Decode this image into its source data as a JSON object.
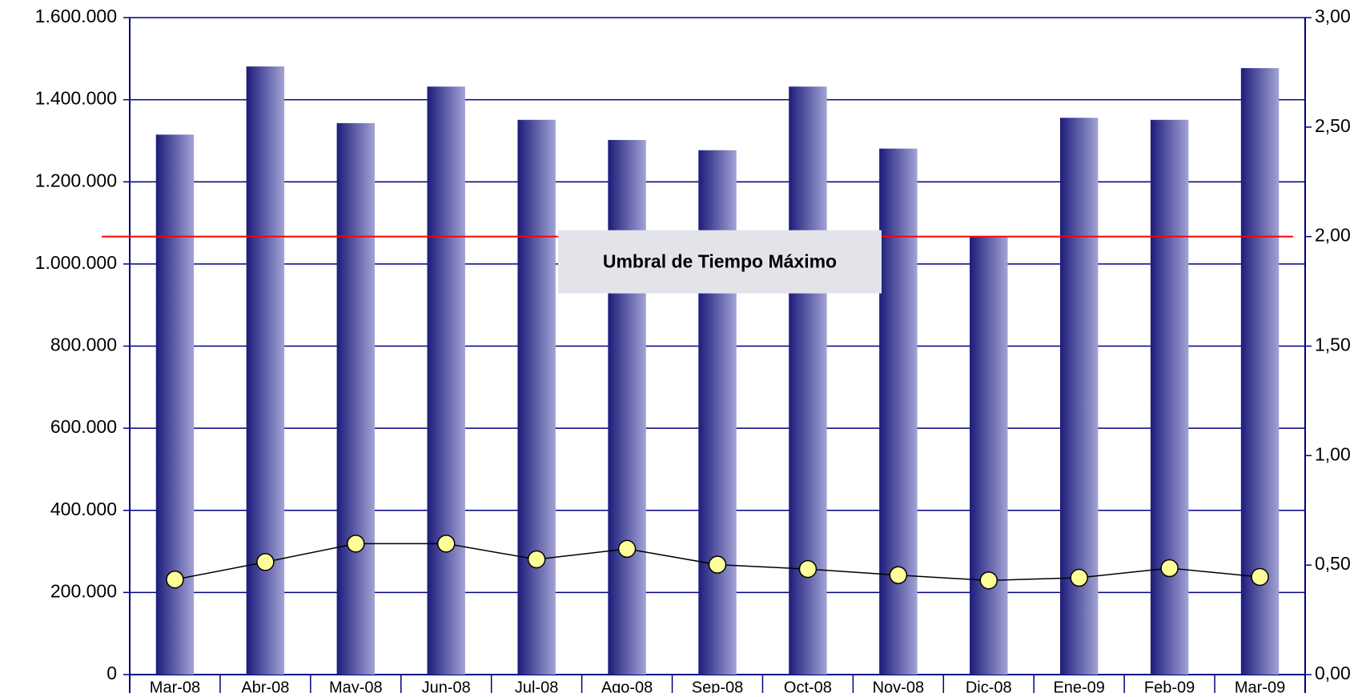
{
  "chart_data": {
    "type": "bar_line",
    "categories": [
      "Mar-08",
      "Abr-08",
      "May-08",
      "Jun-08",
      "Jul-08",
      "Ago-08",
      "Sep-08",
      "Oct-08",
      "Nov-08",
      "Dic-08",
      "Ene-09",
      "Feb-09",
      "Mar-09"
    ],
    "series": [
      {
        "type": "bar",
        "color": "#1c1c7a",
        "values": [
          1315000,
          1481000,
          1343000,
          1432000,
          1351000,
          1302000,
          1277000,
          1432000,
          1281000,
          1065000,
          1356000,
          1351000,
          1477000
        ]
      },
      {
        "type": "line",
        "axis": "y2",
        "color": "#000000",
        "marker_color": "#ffff99",
        "values": [
          0.434,
          0.514,
          0.598,
          0.598,
          0.526,
          0.574,
          0.502,
          0.482,
          0.454,
          0.43,
          0.442,
          0.486,
          0.446
        ]
      }
    ],
    "threshold": {
      "label": "Umbral de Tiempo Máximo",
      "value": 2,
      "axis": "y2",
      "color": "#ff0000"
    },
    "ylim": [
      0,
      1600000
    ],
    "yticks": [
      {
        "value": 0,
        "label": "0"
      },
      {
        "value": 200000,
        "label": "200.000"
      },
      {
        "value": 400000,
        "label": "400.000"
      },
      {
        "value": 600000,
        "label": "600.000"
      },
      {
        "value": 800000,
        "label": "800.000"
      },
      {
        "value": 1000000,
        "label": "1.000.000"
      },
      {
        "value": 1200000,
        "label": "1.200.000"
      },
      {
        "value": 1400000,
        "label": "1.400.000"
      },
      {
        "value": 1600000,
        "label": "1.600.000"
      }
    ],
    "y2lim": [
      0,
      3
    ],
    "y2ticks": [
      {
        "value": 0,
        "label": "0,00"
      },
      {
        "value": 0.5,
        "label": "0,50"
      },
      {
        "value": 1,
        "label": "1,00"
      },
      {
        "value": 1.5,
        "label": "1,50"
      },
      {
        "value": 2,
        "label": "2,00"
      },
      {
        "value": 2.5,
        "label": "2,50"
      },
      {
        "value": 3,
        "label": "3,00"
      }
    ],
    "grid": true,
    "grid_color": "#000080"
  }
}
